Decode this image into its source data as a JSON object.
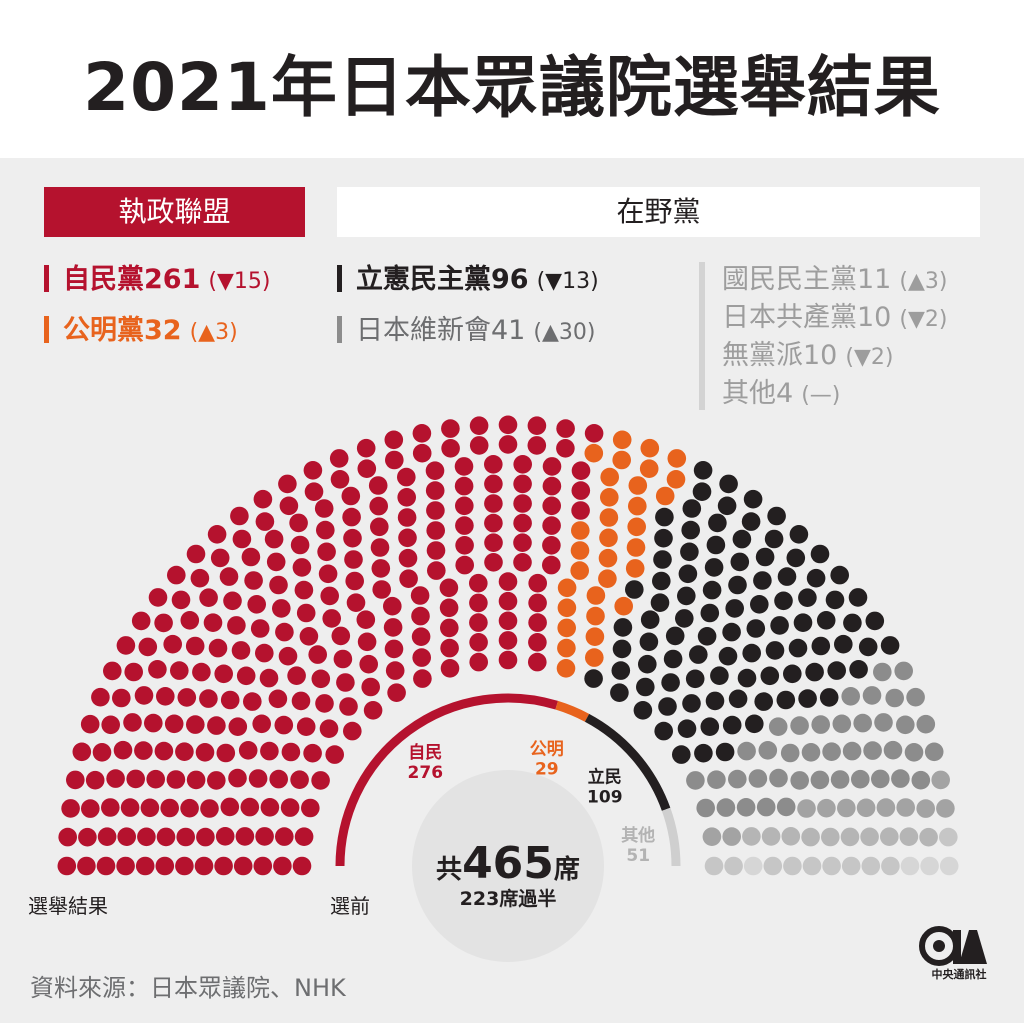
{
  "title": "2021年日本眾議院選舉結果",
  "bands": {
    "ruling": "執政聯盟",
    "opposition": "在野黨"
  },
  "legend": {
    "ldp": {
      "name": "自民黨261",
      "change": "(▼15)",
      "color": "#b5122e"
    },
    "komeito": {
      "name": "公明黨32",
      "change": "(▲3)",
      "color": "#e8631d"
    },
    "cdp": {
      "name": "立憲民主黨96",
      "change": "(▼13)",
      "color": "#231f20"
    },
    "ishin": {
      "name": "日本維新會41",
      "change": "(▲30)",
      "color": "#8c8c8c"
    },
    "dpp": {
      "name": "國民民主黨11",
      "change": "(▲3)"
    },
    "jcp": {
      "name": "日本共產黨10",
      "change": "(▼2)"
    },
    "ind": {
      "name": "無黨派10",
      "change": "(▼2)"
    },
    "other": {
      "name": "其他4",
      "change": "(—)"
    }
  },
  "center": {
    "total_prefix": "共",
    "total": "465",
    "total_suffix": "席",
    "majority": "223席過半"
  },
  "labels": {
    "result": "選舉結果",
    "before": "選前"
  },
  "source": "資料來源：日本眾議院、NHK",
  "logo": {
    "mark": "CNA",
    "text": "中央通訊社"
  },
  "chart_data": {
    "type": "parliament",
    "total_seats": 465,
    "majority": 223,
    "result": {
      "title": "選舉結果",
      "series": [
        {
          "name": "自民黨",
          "seats": 261,
          "color": "#b5122e"
        },
        {
          "name": "公明黨",
          "seats": 32,
          "color": "#e8631d"
        },
        {
          "name": "立憲民主黨",
          "seats": 96,
          "color": "#231f20"
        },
        {
          "name": "日本維新會",
          "seats": 41,
          "color": "#8c8c8c"
        },
        {
          "name": "國民民主黨",
          "seats": 11,
          "color": "#a3a3a3"
        },
        {
          "name": "日本共產黨",
          "seats": 10,
          "color": "#b5b5b5"
        },
        {
          "name": "無黨派",
          "seats": 10,
          "color": "#c6c6c6"
        },
        {
          "name": "其他",
          "seats": 4,
          "color": "#d6d6d6"
        }
      ]
    },
    "before": {
      "title": "選前",
      "series": [
        {
          "name": "自民",
          "value": "276",
          "seats": 276,
          "color": "#b5122e"
        },
        {
          "name": "公明",
          "value": "29",
          "seats": 29,
          "color": "#e8631d"
        },
        {
          "name": "立民",
          "value": "109",
          "seats": 109,
          "color": "#231f20"
        },
        {
          "name": "其他",
          "value": "51",
          "seats": 51,
          "color": "#cfcfcf"
        }
      ]
    }
  }
}
